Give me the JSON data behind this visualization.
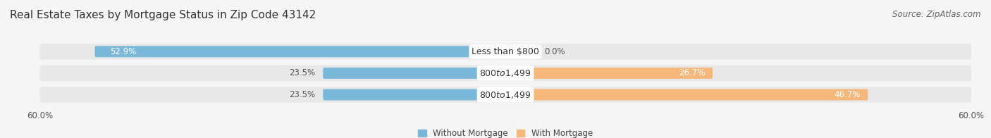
{
  "title": "Real Estate Taxes by Mortgage Status in Zip Code 43142",
  "source": "Source: ZipAtlas.com",
  "categories": [
    "Less than $800",
    "$800 to $1,499",
    "$800 to $1,499"
  ],
  "without_mortgage": [
    52.9,
    23.5,
    23.5
  ],
  "with_mortgage": [
    0.0,
    26.7,
    46.7
  ],
  "color_without": "#7ab8d9",
  "color_with": "#f5b87a",
  "bar_height": 0.52,
  "bar_bg_color": "#e8e8e8",
  "xlim": [
    -60,
    60
  ],
  "legend_labels": [
    "Without Mortgage",
    "With Mortgage"
  ],
  "bg_color": "#f5f5f5",
  "title_fontsize": 11,
  "source_fontsize": 8.5,
  "label_fontsize": 8.5,
  "axis_fontsize": 8.5,
  "cat_label_fontsize": 9,
  "pct_inside_color": "white",
  "pct_outside_color": "#555555",
  "row1_pct_left_inside": true,
  "row2_pct_left_outside": true,
  "row3_pct_left_outside": true
}
